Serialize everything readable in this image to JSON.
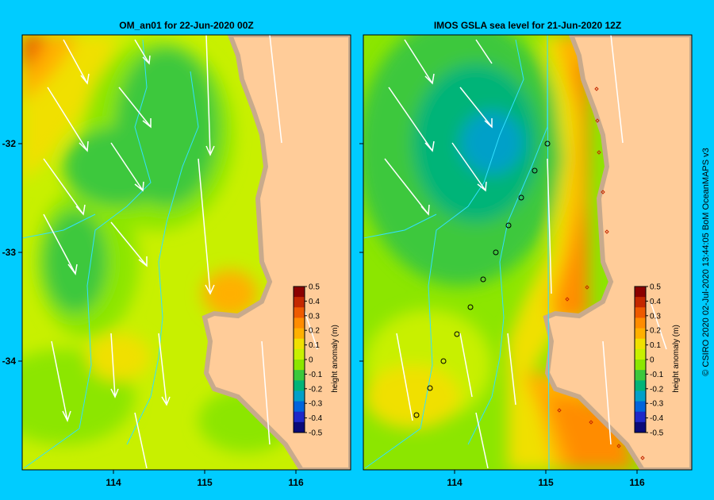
{
  "panels": [
    {
      "title": "OM_an01  for 22-Jun-2020 00Z",
      "colorbar_label": "height anomaly (m)"
    },
    {
      "title": "IMOS GSLA sea level  for 21-Jun-2020 12Z",
      "colorbar_label": "height anomaly (m)"
    }
  ],
  "axes": {
    "x_ticks": [
      "114",
      "115",
      "116"
    ],
    "y_ticks": [
      "-32",
      "-33",
      "-34"
    ],
    "x_values": [
      114,
      115,
      116
    ],
    "y_values": [
      -32,
      -33,
      -34
    ],
    "lon_range": [
      113.0,
      116.6
    ],
    "lat_range": [
      -31.0,
      -35.0
    ]
  },
  "colorbar": {
    "ticks": [
      "0.5",
      "0.4",
      "0.3",
      "0.2",
      "0.1",
      "0",
      "-0.1",
      "-0.2",
      "-0.3",
      "-0.4",
      "-0.5"
    ],
    "range": [
      -0.5,
      0.5
    ],
    "colors": [
      "#8b0000",
      "#c42800",
      "#ee5a00",
      "#ff8c00",
      "#ffb000",
      "#f0e000",
      "#c8f000",
      "#8ce600",
      "#3cc83c",
      "#00b478",
      "#00a0c8",
      "#0064dc",
      "#1e28c8",
      "#0a0a78"
    ]
  },
  "palette": {
    "land": "#ffcc99",
    "shore": "#c8aa8c",
    "background": "#00ccff",
    "track": "#33e0ff"
  },
  "credit": "© CSIRO 2020   02-Jul-2020 13:44:05 BoM OceanMAPS v3"
}
